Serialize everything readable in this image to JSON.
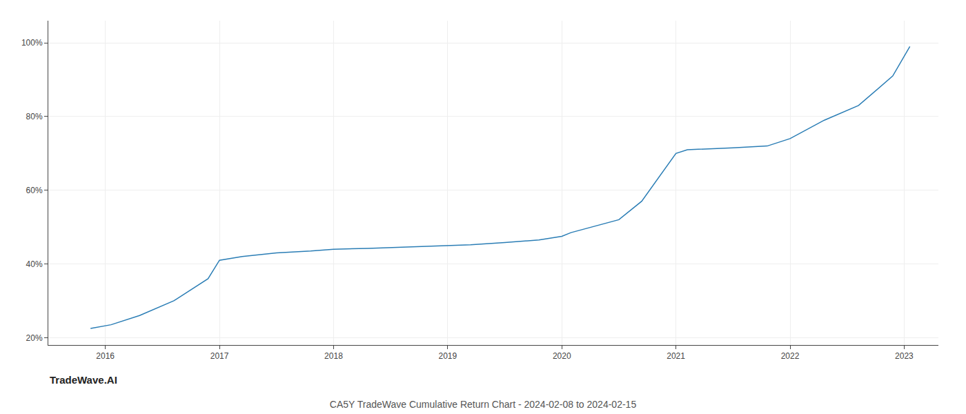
{
  "chart_data": {
    "type": "line",
    "title": "CA5Y TradeWave Cumulative Return Chart - 2024-02-08 to 2024-02-15",
    "annotations": [
      "TradeWave.AI"
    ],
    "color": "#2a7db5",
    "x": [
      2015.87,
      2016.05,
      2016.3,
      2016.6,
      2016.9,
      2017.0,
      2017.2,
      2017.5,
      2017.8,
      2018.0,
      2018.3,
      2018.6,
      2018.9,
      2019.0,
      2019.2,
      2019.5,
      2019.8,
      2020.0,
      2020.08,
      2020.5,
      2020.7,
      2021.0,
      2021.1,
      2021.5,
      2021.8,
      2022.0,
      2022.3,
      2022.6,
      2022.9,
      2023.05
    ],
    "values": [
      22.5,
      23.5,
      26,
      30,
      36,
      41,
      42,
      43,
      43.5,
      44,
      44.2,
      44.5,
      44.8,
      45,
      45.2,
      45.8,
      46.5,
      47.5,
      48.5,
      52,
      57,
      70,
      71,
      71.5,
      72,
      74,
      79,
      83,
      91,
      99
    ],
    "xlim": [
      2015.5,
      2023.3
    ],
    "ylim": [
      18,
      106
    ],
    "xticks": [
      2016,
      2017,
      2018,
      2019,
      2020,
      2021,
      2022,
      2023
    ],
    "yticks": [
      {
        "value": 20,
        "label": "20%"
      },
      {
        "value": 40,
        "label": "40%"
      },
      {
        "value": 60,
        "label": "60%"
      },
      {
        "value": 80,
        "label": "80%"
      },
      {
        "value": 100,
        "label": "100%"
      }
    ],
    "grid": true
  }
}
